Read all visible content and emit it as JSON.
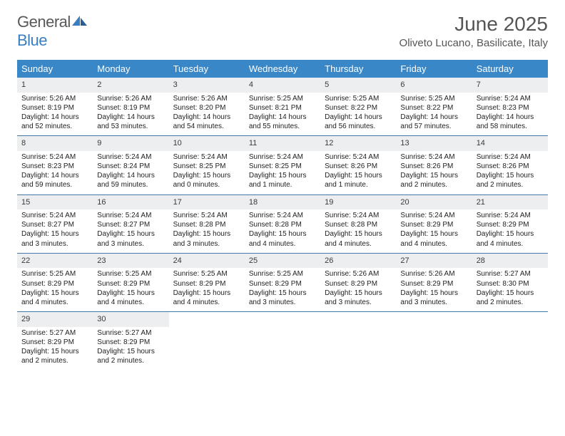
{
  "logo": {
    "general": "General",
    "blue": "Blue"
  },
  "header": {
    "month_year": "June 2025",
    "location": "Oliveto Lucano, Basilicate, Italy"
  },
  "colors": {
    "dow_bg": "#3a87c8",
    "daynum_bg": "#eceeef",
    "week_border": "#4576a8",
    "text": "#222222",
    "header_text": "#555555"
  },
  "days_of_week": [
    "Sunday",
    "Monday",
    "Tuesday",
    "Wednesday",
    "Thursday",
    "Friday",
    "Saturday"
  ],
  "start_blank_cells": 0,
  "days": [
    {
      "n": "1",
      "sunrise": "Sunrise: 5:26 AM",
      "sunset": "Sunset: 8:19 PM",
      "day1": "Daylight: 14 hours",
      "day2": "and 52 minutes."
    },
    {
      "n": "2",
      "sunrise": "Sunrise: 5:26 AM",
      "sunset": "Sunset: 8:19 PM",
      "day1": "Daylight: 14 hours",
      "day2": "and 53 minutes."
    },
    {
      "n": "3",
      "sunrise": "Sunrise: 5:26 AM",
      "sunset": "Sunset: 8:20 PM",
      "day1": "Daylight: 14 hours",
      "day2": "and 54 minutes."
    },
    {
      "n": "4",
      "sunrise": "Sunrise: 5:25 AM",
      "sunset": "Sunset: 8:21 PM",
      "day1": "Daylight: 14 hours",
      "day2": "and 55 minutes."
    },
    {
      "n": "5",
      "sunrise": "Sunrise: 5:25 AM",
      "sunset": "Sunset: 8:22 PM",
      "day1": "Daylight: 14 hours",
      "day2": "and 56 minutes."
    },
    {
      "n": "6",
      "sunrise": "Sunrise: 5:25 AM",
      "sunset": "Sunset: 8:22 PM",
      "day1": "Daylight: 14 hours",
      "day2": "and 57 minutes."
    },
    {
      "n": "7",
      "sunrise": "Sunrise: 5:24 AM",
      "sunset": "Sunset: 8:23 PM",
      "day1": "Daylight: 14 hours",
      "day2": "and 58 minutes."
    },
    {
      "n": "8",
      "sunrise": "Sunrise: 5:24 AM",
      "sunset": "Sunset: 8:23 PM",
      "day1": "Daylight: 14 hours",
      "day2": "and 59 minutes."
    },
    {
      "n": "9",
      "sunrise": "Sunrise: 5:24 AM",
      "sunset": "Sunset: 8:24 PM",
      "day1": "Daylight: 14 hours",
      "day2": "and 59 minutes."
    },
    {
      "n": "10",
      "sunrise": "Sunrise: 5:24 AM",
      "sunset": "Sunset: 8:25 PM",
      "day1": "Daylight: 15 hours",
      "day2": "and 0 minutes."
    },
    {
      "n": "11",
      "sunrise": "Sunrise: 5:24 AM",
      "sunset": "Sunset: 8:25 PM",
      "day1": "Daylight: 15 hours",
      "day2": "and 1 minute."
    },
    {
      "n": "12",
      "sunrise": "Sunrise: 5:24 AM",
      "sunset": "Sunset: 8:26 PM",
      "day1": "Daylight: 15 hours",
      "day2": "and 1 minute."
    },
    {
      "n": "13",
      "sunrise": "Sunrise: 5:24 AM",
      "sunset": "Sunset: 8:26 PM",
      "day1": "Daylight: 15 hours",
      "day2": "and 2 minutes."
    },
    {
      "n": "14",
      "sunrise": "Sunrise: 5:24 AM",
      "sunset": "Sunset: 8:26 PM",
      "day1": "Daylight: 15 hours",
      "day2": "and 2 minutes."
    },
    {
      "n": "15",
      "sunrise": "Sunrise: 5:24 AM",
      "sunset": "Sunset: 8:27 PM",
      "day1": "Daylight: 15 hours",
      "day2": "and 3 minutes."
    },
    {
      "n": "16",
      "sunrise": "Sunrise: 5:24 AM",
      "sunset": "Sunset: 8:27 PM",
      "day1": "Daylight: 15 hours",
      "day2": "and 3 minutes."
    },
    {
      "n": "17",
      "sunrise": "Sunrise: 5:24 AM",
      "sunset": "Sunset: 8:28 PM",
      "day1": "Daylight: 15 hours",
      "day2": "and 3 minutes."
    },
    {
      "n": "18",
      "sunrise": "Sunrise: 5:24 AM",
      "sunset": "Sunset: 8:28 PM",
      "day1": "Daylight: 15 hours",
      "day2": "and 4 minutes."
    },
    {
      "n": "19",
      "sunrise": "Sunrise: 5:24 AM",
      "sunset": "Sunset: 8:28 PM",
      "day1": "Daylight: 15 hours",
      "day2": "and 4 minutes."
    },
    {
      "n": "20",
      "sunrise": "Sunrise: 5:24 AM",
      "sunset": "Sunset: 8:29 PM",
      "day1": "Daylight: 15 hours",
      "day2": "and 4 minutes."
    },
    {
      "n": "21",
      "sunrise": "Sunrise: 5:24 AM",
      "sunset": "Sunset: 8:29 PM",
      "day1": "Daylight: 15 hours",
      "day2": "and 4 minutes."
    },
    {
      "n": "22",
      "sunrise": "Sunrise: 5:25 AM",
      "sunset": "Sunset: 8:29 PM",
      "day1": "Daylight: 15 hours",
      "day2": "and 4 minutes."
    },
    {
      "n": "23",
      "sunrise": "Sunrise: 5:25 AM",
      "sunset": "Sunset: 8:29 PM",
      "day1": "Daylight: 15 hours",
      "day2": "and 4 minutes."
    },
    {
      "n": "24",
      "sunrise": "Sunrise: 5:25 AM",
      "sunset": "Sunset: 8:29 PM",
      "day1": "Daylight: 15 hours",
      "day2": "and 4 minutes."
    },
    {
      "n": "25",
      "sunrise": "Sunrise: 5:25 AM",
      "sunset": "Sunset: 8:29 PM",
      "day1": "Daylight: 15 hours",
      "day2": "and 3 minutes."
    },
    {
      "n": "26",
      "sunrise": "Sunrise: 5:26 AM",
      "sunset": "Sunset: 8:29 PM",
      "day1": "Daylight: 15 hours",
      "day2": "and 3 minutes."
    },
    {
      "n": "27",
      "sunrise": "Sunrise: 5:26 AM",
      "sunset": "Sunset: 8:29 PM",
      "day1": "Daylight: 15 hours",
      "day2": "and 3 minutes."
    },
    {
      "n": "28",
      "sunrise": "Sunrise: 5:27 AM",
      "sunset": "Sunset: 8:30 PM",
      "day1": "Daylight: 15 hours",
      "day2": "and 2 minutes."
    },
    {
      "n": "29",
      "sunrise": "Sunrise: 5:27 AM",
      "sunset": "Sunset: 8:29 PM",
      "day1": "Daylight: 15 hours",
      "day2": "and 2 minutes."
    },
    {
      "n": "30",
      "sunrise": "Sunrise: 5:27 AM",
      "sunset": "Sunset: 8:29 PM",
      "day1": "Daylight: 15 hours",
      "day2": "and 2 minutes."
    }
  ]
}
